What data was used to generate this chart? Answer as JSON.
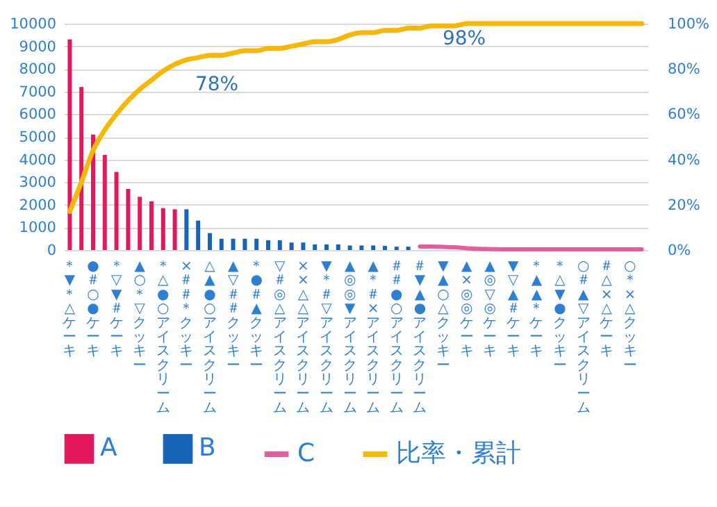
{
  "chart_data": {
    "type": "bar",
    "categories": [
      "＊▼＊△ケーキ",
      null,
      "●＃○●ケーキ",
      null,
      "＊▽▼＃ケーキ",
      null,
      "▲○＊▽クッキー",
      null,
      "＊△●○アイスクリーム",
      null,
      "×＃＃＊クッキー",
      null,
      "△▲●○アイスクリーム",
      null,
      "▲▽＃＃クッキー",
      null,
      "＊●＃▲クッキー",
      null,
      "▽＃◎△アイスクリーム",
      null,
      "××△△アイスクリーム",
      null,
      "▼＊＃▽アイスクリーム",
      null,
      "▲◎◎▼アイスクリーム",
      null,
      "▲＊＃×アイスクリーム",
      null,
      "＃＃●○アイスクリーム",
      null,
      "＃▼▲●アイスクリーム",
      null,
      "▼▲○△クッキー",
      null,
      "▲×◎◎ケーキ",
      null,
      "▲◎▽◎ケーキ",
      null,
      "▼▽▲＃ケーキ",
      null,
      "＊▲▲＊ケーキ",
      null,
      "＊△▼●クッキー",
      null,
      "○＃▲▽アイスクリーム",
      null,
      "＃△×△ケーキ",
      null,
      "○＊×△クッキー",
      null
    ],
    "series": [
      {
        "name": "A",
        "color": "#e4185c",
        "values": [
          9300,
          7200,
          5100,
          4200,
          3450,
          2700,
          2350,
          2150,
          1850,
          1800,
          null,
          null,
          null,
          null,
          null,
          null,
          null,
          null,
          null,
          null,
          null,
          null,
          null,
          null,
          null,
          null,
          null,
          null,
          null,
          null,
          null,
          null,
          null,
          null,
          null,
          null,
          null,
          null,
          null,
          null,
          null,
          null,
          null,
          null,
          null,
          null,
          null,
          null,
          null,
          null
        ]
      },
      {
        "name": "B",
        "color": "#1763b8",
        "values": [
          null,
          null,
          null,
          null,
          null,
          null,
          null,
          null,
          null,
          null,
          1800,
          1300,
          750,
          500,
          500,
          500,
          500,
          430,
          430,
          330,
          330,
          250,
          250,
          250,
          200,
          200,
          200,
          180,
          150,
          150,
          null,
          null,
          null,
          null,
          null,
          null,
          null,
          null,
          null,
          null,
          null,
          null,
          null,
          null,
          null,
          null,
          null,
          null,
          null,
          null
        ]
      },
      {
        "name": "C",
        "type": "line",
        "color": "#e0609e",
        "values": [
          null,
          null,
          null,
          null,
          null,
          null,
          null,
          null,
          null,
          null,
          null,
          null,
          null,
          null,
          null,
          null,
          null,
          null,
          null,
          null,
          null,
          null,
          null,
          null,
          null,
          null,
          null,
          null,
          null,
          null,
          150,
          150,
          140,
          120,
          80,
          50,
          40,
          30,
          30,
          30,
          30,
          30,
          30,
          30,
          30,
          30,
          30,
          30,
          30,
          30
        ]
      },
      {
        "name": "比率・累計",
        "type": "line",
        "axis": "y2",
        "color": "#f6b808",
        "values": [
          17,
          30,
          44,
          53,
          60,
          66,
          71,
          75,
          79,
          82,
          84,
          85,
          86,
          86,
          87,
          88,
          88,
          89,
          89,
          90,
          91,
          92,
          92,
          93,
          95,
          96,
          96,
          97,
          97,
          98,
          98,
          99,
          99,
          99,
          100,
          100,
          100,
          100,
          100,
          100,
          100,
          100,
          100,
          100,
          100,
          100,
          100,
          100,
          100,
          100
        ]
      }
    ],
    "ylim": [
      0,
      10000
    ],
    "yticks": [
      0,
      1000,
      2000,
      3000,
      4000,
      5000,
      6000,
      7000,
      8000,
      9000,
      10000
    ],
    "y2lim": [
      0,
      100
    ],
    "y2ticks": [
      {
        "value": 0,
        "label": "0%"
      },
      {
        "value": 20,
        "label": "20%"
      },
      {
        "value": 40,
        "label": "40%"
      },
      {
        "value": 60,
        "label": "60%"
      },
      {
        "value": 80,
        "label": "80%"
      },
      {
        "value": 100,
        "label": "100%"
      }
    ],
    "annotations": [
      "78%",
      "98%"
    ],
    "grid": "y",
    "legend": "bottom"
  }
}
